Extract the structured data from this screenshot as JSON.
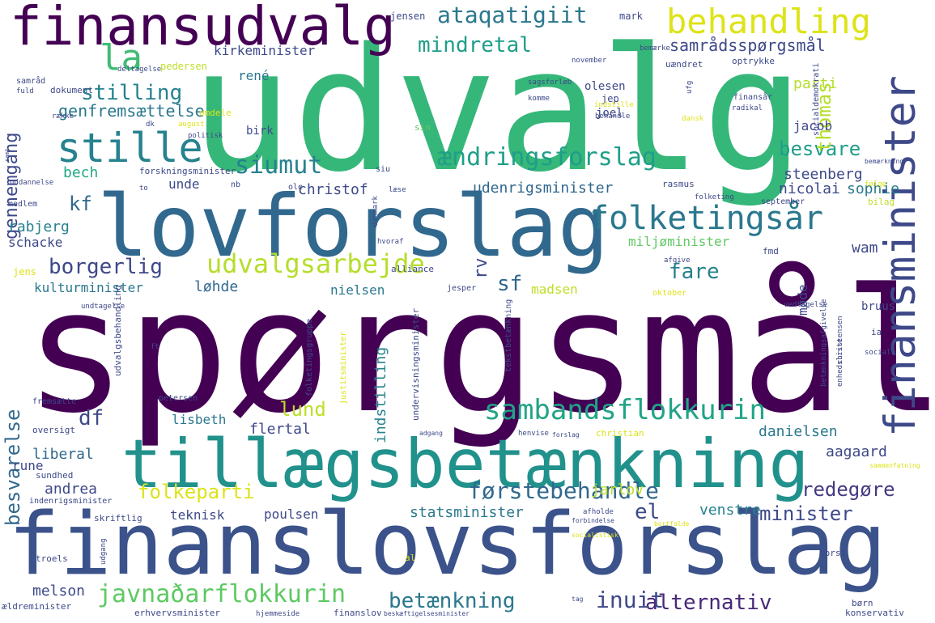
{
  "words": [
    {
      "text": "spørgsmål",
      "color": "#440154"
    },
    {
      "text": "udvalg",
      "color": "#35b779"
    },
    {
      "text": "finanslovsforslag",
      "color": "#3b528b"
    },
    {
      "text": "lovforslag",
      "color": "#31688e"
    },
    {
      "text": "tillægsbetænkning",
      "color": "#21918c"
    },
    {
      "text": "finansudvalg",
      "color": "#440154"
    },
    {
      "text": "finansminister",
      "color": "#3e4989"
    },
    {
      "text": "behandling",
      "color": "#dde318"
    },
    {
      "text": "folketingsår",
      "color": "#2a788e"
    },
    {
      "text": "stille",
      "color": "#26828e"
    },
    {
      "text": "la",
      "color": "#3fbc73"
    },
    {
      "text": "sambandsflokkurin",
      "color": "#20a486"
    },
    {
      "text": "udvalgsarbejde",
      "color": "#b5de2b"
    },
    {
      "text": "ændringsforslag",
      "color": "#1f9e89"
    },
    {
      "text": "javnaðarflokkurin",
      "color": "#5ec962"
    },
    {
      "text": "førstebehandle",
      "color": "#31688e"
    },
    {
      "text": "siumut",
      "color": "#26828e"
    },
    {
      "text": "alternativ",
      "color": "#482878"
    },
    {
      "text": "betænkning",
      "color": "#2a788e"
    },
    {
      "text": "inuit",
      "color": "#3e4989"
    },
    {
      "text": "ataqatigiit",
      "color": "#2a788e"
    },
    {
      "text": "mindretal",
      "color": "#1f9e89"
    },
    {
      "text": "minister",
      "color": "#3e4989"
    },
    {
      "text": "redegøre",
      "color": "#443983"
    },
    {
      "text": "folkeparti",
      "color": "#dde318"
    },
    {
      "text": "borgerlig",
      "color": "#3e4989"
    },
    {
      "text": "stilling",
      "color": "#26828e"
    },
    {
      "text": "besvare",
      "color": "#1f9e89"
    },
    {
      "text": "fare",
      "color": "#26828e"
    },
    {
      "text": "el",
      "color": "#3e4989"
    },
    {
      "text": "sf",
      "color": "#31688e"
    },
    {
      "text": "thomas",
      "color": "#b5de2b"
    },
    {
      "text": "lund",
      "color": "#bddf26"
    },
    {
      "text": "df",
      "color": "#3e4989"
    },
    {
      "text": "kf",
      "color": "#31688e"
    },
    {
      "text": "rv",
      "color": "#3e4989"
    },
    {
      "text": "besvarelse",
      "color": "#31688e"
    },
    {
      "text": "gennemgang",
      "color": "#3e4989"
    },
    {
      "text": "samrådsspørgsmål",
      "color": "#3e4989"
    },
    {
      "text": "genfremsættelse",
      "color": "#2a788e"
    },
    {
      "text": "kirkeminister",
      "color": "#3e4989"
    },
    {
      "text": "bech",
      "color": "#22a884"
    },
    {
      "text": "parti",
      "color": "#b5de2b"
    },
    {
      "text": "steenberg",
      "color": "#3e4989"
    },
    {
      "text": "udenrigsminister",
      "color": "#31688e"
    },
    {
      "text": "christof",
      "color": "#3e4989"
    },
    {
      "text": "nicolai",
      "color": "#3e4989"
    },
    {
      "text": "sophie",
      "color": "#2a788e"
    },
    {
      "text": "jacob",
      "color": "#3e4989"
    },
    {
      "text": "rabjerg",
      "color": "#26828e"
    },
    {
      "text": "schacke",
      "color": "#3e4989"
    },
    {
      "text": "kulturminister",
      "color": "#2a788e"
    },
    {
      "text": "løhde",
      "color": "#31688e"
    },
    {
      "text": "nielsen",
      "color": "#2a788e"
    },
    {
      "text": "madsen",
      "color": "#bddf26"
    },
    {
      "text": "miljøminister",
      "color": "#5ec962"
    },
    {
      "text": "wam",
      "color": "#3e4989"
    },
    {
      "text": "møde",
      "color": "#3e4989"
    },
    {
      "text": "flertal",
      "color": "#3e4989"
    },
    {
      "text": "lisbeth",
      "color": "#2a788e"
    },
    {
      "text": "liberal",
      "color": "#31688e"
    },
    {
      "text": "andrea",
      "color": "#3e4989"
    },
    {
      "text": "rune",
      "color": "#3e4989"
    },
    {
      "text": "teknisk",
      "color": "#3e4989"
    },
    {
      "text": "poulsen",
      "color": "#3e4989"
    },
    {
      "text": "statsminister",
      "color": "#2a788e"
    },
    {
      "text": "venstre",
      "color": "#26828e"
    },
    {
      "text": "jarlov",
      "color": "#bddf26"
    },
    {
      "text": "aagaard",
      "color": "#3e4989"
    },
    {
      "text": "danielsen",
      "color": "#2a788e"
    },
    {
      "text": "melson",
      "color": "#3e4989"
    },
    {
      "text": "indstilling",
      "color": "#26828e"
    },
    {
      "text": "unde",
      "color": "#3e4989"
    },
    {
      "text": "rené",
      "color": "#2a788e"
    },
    {
      "text": "bruus",
      "color": "#3e4989"
    },
    {
      "text": "jens",
      "color": "#dde318"
    },
    {
      "text": "jensen",
      "color": "#3e4989"
    },
    {
      "text": "mark",
      "color": "#3e4989"
    },
    {
      "text": "olesen",
      "color": "#3e4989"
    },
    {
      "text": "joel",
      "color": "#3e4989"
    },
    {
      "text": "jep",
      "color": "#3e4989"
    },
    {
      "text": "birk",
      "color": "#3e4989"
    },
    {
      "text": "pedersen",
      "color": "#bddf26"
    },
    {
      "text": "samråd",
      "color": "#3e4989"
    },
    {
      "text": "fuld",
      "color": "#3e4989"
    },
    {
      "text": "deltagelse",
      "color": "#3e4989"
    },
    {
      "text": "november",
      "color": "#3e4989"
    },
    {
      "text": "bemærke",
      "color": "#3e4989"
    },
    {
      "text": "uændret",
      "color": "#3e4989"
    },
    {
      "text": "optrykke",
      "color": "#3e4989"
    },
    {
      "text": "dokument",
      "color": "#3e4989"
    },
    {
      "text": "række",
      "color": "#3e4989"
    },
    {
      "text": "omdele",
      "color": "#dde318"
    },
    {
      "text": "dk",
      "color": "#3e4989"
    },
    {
      "text": "august",
      "color": "#dde318"
    },
    {
      "text": "politisk",
      "color": "#3e4989"
    },
    {
      "text": "sagsforløb",
      "color": "#3e4989"
    },
    {
      "text": "komme",
      "color": "#3e4989"
    },
    {
      "text": "indstille",
      "color": "#dde318"
    },
    {
      "text": "behandle",
      "color": "#3e4989"
    },
    {
      "text": "finansår",
      "color": "#3e4989"
    },
    {
      "text": "radikal",
      "color": "#3e4989"
    },
    {
      "text": "dansk",
      "color": "#dde318"
    },
    {
      "text": "socialdemokrati",
      "color": "#3e4989"
    },
    {
      "text": "sin",
      "color": "#5ec962"
    },
    {
      "text": "forskningsminister",
      "color": "#3e4989"
    },
    {
      "text": "siu",
      "color": "#3e4989"
    },
    {
      "text": "nb",
      "color": "#3e4989"
    },
    {
      "text": "ole",
      "color": "#3e4989"
    },
    {
      "text": "læse",
      "color": "#3e4989"
    },
    {
      "text": "rasmus",
      "color": "#3e4989"
    },
    {
      "text": "folketing",
      "color": "#3e4989"
    },
    {
      "text": "følge",
      "color": "#dde318"
    },
    {
      "text": "bilag",
      "color": "#bddf26"
    },
    {
      "text": "september",
      "color": "#3e4989"
    },
    {
      "text": "uddannelse",
      "color": "#3e4989"
    },
    {
      "text": "medlem",
      "color": "#3e4989"
    },
    {
      "text": "to",
      "color": "#3e4989"
    },
    {
      "text": "danmark",
      "color": "#3e4989"
    },
    {
      "text": "hvoraf",
      "color": "#3e4989"
    },
    {
      "text": "alliance",
      "color": "#3e4989"
    },
    {
      "text": "afgive",
      "color": "#3e4989"
    },
    {
      "text": "fmd",
      "color": "#3e4989"
    },
    {
      "text": "jesper",
      "color": "#3e4989"
    },
    {
      "text": "oktober",
      "color": "#dde318"
    },
    {
      "text": "undtagelse",
      "color": "#3e4989"
    },
    {
      "text": "vedtagelse",
      "color": "#3e4989"
    },
    {
      "text": "ft",
      "color": "#3e4989"
    },
    {
      "text": "social",
      "color": "#3e4989"
    },
    {
      "text": "ia",
      "color": "#3e4989"
    },
    {
      "text": "christensen",
      "color": "#3e4989"
    },
    {
      "text": "udvalgsbehandling",
      "color": "#3e4989"
    },
    {
      "text": "folketingsgruppe",
      "color": "#3e4989"
    },
    {
      "text": "undervisningsminister",
      "color": "#3e4989"
    },
    {
      "text": "tekstbetænkning",
      "color": "#3e4989"
    },
    {
      "text": "justitsminister",
      "color": "#dde318"
    },
    {
      "text": "betænkningsafgivelse",
      "color": "#3e4989"
    },
    {
      "text": "enhedsliste",
      "color": "#3e4989"
    },
    {
      "text": "fremsætte",
      "color": "#3e4989"
    },
    {
      "text": "petersen",
      "color": "#3e4989"
    },
    {
      "text": "oversigt",
      "color": "#3e4989"
    },
    {
      "text": "adgang",
      "color": "#3e4989"
    },
    {
      "text": "henvise",
      "color": "#3e4989"
    },
    {
      "text": "forslag",
      "color": "#3e4989"
    },
    {
      "text": "christian",
      "color": "#dde318"
    },
    {
      "text": "sammenfatning",
      "color": "#dde318"
    },
    {
      "text": "sundhed",
      "color": "#3e4989"
    },
    {
      "text": "indenrigsminister",
      "color": "#3e4989"
    },
    {
      "text": "skriftlig",
      "color": "#3e4989"
    },
    {
      "text": "afholde",
      "color": "#3e4989"
    },
    {
      "text": "forbindelse",
      "color": "#3e4989"
    },
    {
      "text": "socialistisk",
      "color": "#dde318"
    },
    {
      "text": "bortfalde",
      "color": "#dde318"
    },
    {
      "text": "troels",
      "color": "#3e4989"
    },
    {
      "text": "udgang",
      "color": "#3e4989"
    },
    {
      "text": "al",
      "color": "#dde318"
    },
    {
      "text": "torst",
      "color": "#3e4989"
    },
    {
      "text": "ældreminister",
      "color": "#3e4989"
    },
    {
      "text": "erhvervsminister",
      "color": "#3e4989"
    },
    {
      "text": "hjemmeside",
      "color": "#3e4989"
    },
    {
      "text": "finanslov",
      "color": "#3e4989"
    },
    {
      "text": "beskæftigelsesminister",
      "color": "#3e4989"
    },
    {
      "text": "børn",
      "color": "#3e4989"
    },
    {
      "text": "konservativ",
      "color": "#3e4989"
    },
    {
      "text": "tag",
      "color": "#3e4989"
    },
    {
      "text": "ufg",
      "color": "#3e4989"
    },
    {
      "text": "bemærkning",
      "color": "#3e4989"
    },
    {
      "text": "samt",
      "color": "#3e4989"
    }
  ]
}
